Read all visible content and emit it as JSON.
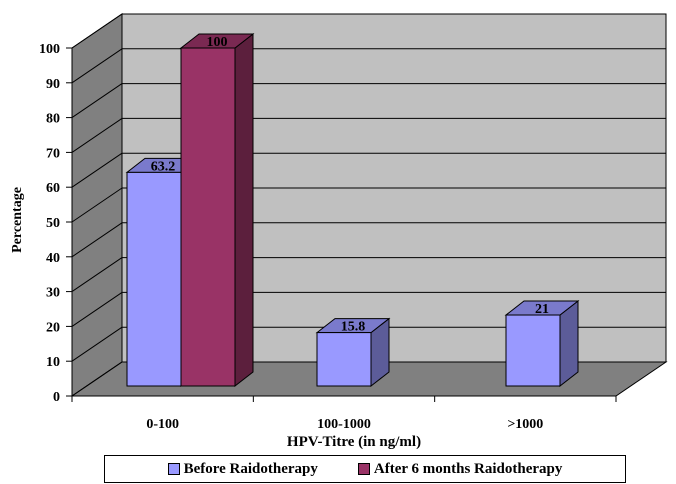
{
  "chart_data": {
    "type": "bar",
    "style": "3d-clustered-column",
    "categories": [
      "0-100",
      "100-1000",
      ">1000"
    ],
    "series": [
      {
        "name": "Before Raidotherapy",
        "values": [
          63.2,
          15.8,
          21
        ],
        "color": "#9999FF",
        "labels": [
          "63.2",
          "15.8",
          "21"
        ]
      },
      {
        "name": "After 6 months Raidotherapy",
        "values": [
          100,
          null,
          null
        ],
        "color": "#993366",
        "labels": [
          "100",
          "",
          ""
        ]
      }
    ],
    "yticks": [
      "0",
      "10",
      "20",
      "30",
      "40",
      "50",
      "60",
      "70",
      "80",
      "90",
      "100"
    ],
    "xlabel": "HPV-Titre (in ng/ml)",
    "ylabel": "Percentage",
    "ylim": [
      0,
      100
    ],
    "grid": true,
    "legend_position": "bottom",
    "wall_color": "#C0C0C0",
    "floor_color": "#808080"
  }
}
